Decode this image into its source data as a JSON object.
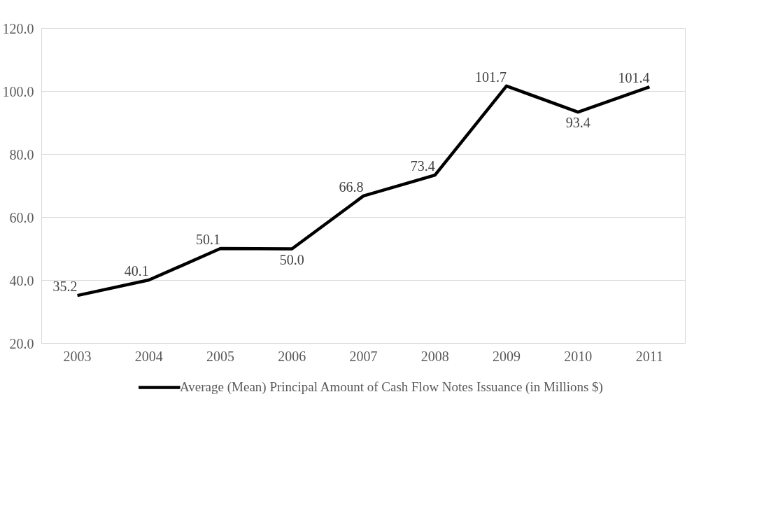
{
  "chart_data": {
    "type": "line",
    "categories": [
      "2003",
      "2004",
      "2005",
      "2006",
      "2007",
      "2008",
      "2009",
      "2010",
      "2011"
    ],
    "series": [
      {
        "name": "Average (Mean) Principal Amount of Cash Flow Notes Issuance (in Millions $)",
        "color": "#000000",
        "values": [
          35.2,
          40.1,
          50.1,
          50.0,
          66.8,
          73.4,
          101.7,
          93.4,
          101.4
        ],
        "value_labels": [
          "35.2",
          "40.1",
          "50.1",
          "50.0",
          "66.8",
          "73.4",
          "101.7",
          "93.4",
          "101.4"
        ]
      }
    ],
    "ylim": [
      20,
      120
    ],
    "yticks": [
      {
        "value": 20,
        "label": "20.0"
      },
      {
        "value": 40,
        "label": "40.0"
      },
      {
        "value": 60,
        "label": "60.0"
      },
      {
        "value": 80,
        "label": "80.0"
      },
      {
        "value": 100,
        "label": "100.0"
      },
      {
        "value": 120,
        "label": "120.0"
      }
    ],
    "grid": "y",
    "legend": "bottom",
    "marker": "none",
    "line_style": "solid"
  }
}
